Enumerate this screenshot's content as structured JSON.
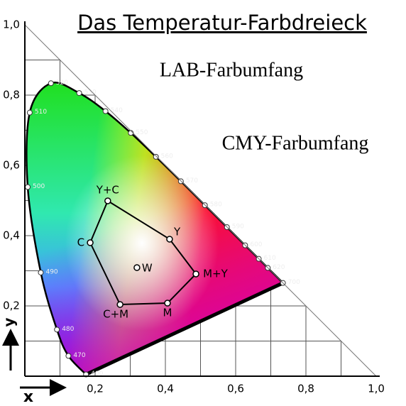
{
  "chart_data": {
    "type": "chromaticity",
    "title": "Das Temperatur-Farbdreieck",
    "annotations": [
      "LAB-Farbumfang",
      "CMY-Farbumfang"
    ],
    "xlabel": "x",
    "ylabel": "y",
    "xlim": [
      0,
      1
    ],
    "ylim": [
      0,
      1
    ],
    "xticks": [
      {
        "value": 0.2,
        "label": "0,2"
      },
      {
        "value": 0.4,
        "label": "0,4"
      },
      {
        "value": 0.6,
        "label": "0,6"
      },
      {
        "value": 0.8,
        "label": "0,8"
      },
      {
        "value": 1.0,
        "label": "1,0"
      }
    ],
    "yticks": [
      {
        "value": 0.2,
        "label": "0,2"
      },
      {
        "value": 0.4,
        "label": "0,4"
      },
      {
        "value": 0.6,
        "label": "0,6"
      },
      {
        "value": 0.8,
        "label": "0,8"
      },
      {
        "value": 1.0,
        "label": "1,0"
      }
    ],
    "grid": true,
    "locus": {
      "name": "LAB-Farbumfang",
      "labels": [
        "400",
        "470",
        "480",
        "490",
        "500",
        "510",
        "520",
        "530",
        "540",
        "550",
        "560",
        "570",
        "580",
        "590",
        "600",
        "610",
        "620",
        "700"
      ],
      "x": [
        0.1741,
        0.1241,
        0.0913,
        0.0454,
        0.0082,
        0.0139,
        0.0743,
        0.1547,
        0.2296,
        0.3016,
        0.3731,
        0.4441,
        0.5125,
        0.5752,
        0.627,
        0.6658,
        0.6915,
        0.7347
      ],
      "y": [
        0.005,
        0.0578,
        0.1327,
        0.295,
        0.5384,
        0.7502,
        0.8338,
        0.8059,
        0.7543,
        0.6923,
        0.6245,
        0.5547,
        0.4866,
        0.4242,
        0.3725,
        0.334,
        0.3083,
        0.2653
      ]
    },
    "cmy": {
      "name": "CMY-Farbumfang",
      "labels": [
        "Y+C",
        "Y",
        "M+Y",
        "M",
        "C+M",
        "C"
      ],
      "x": [
        0.236,
        0.412,
        0.487,
        0.406,
        0.271,
        0.186
      ],
      "y": [
        0.499,
        0.39,
        0.291,
        0.208,
        0.204,
        0.38
      ]
    },
    "white": {
      "label": "W",
      "x": 0.319,
      "y": 0.309
    }
  }
}
